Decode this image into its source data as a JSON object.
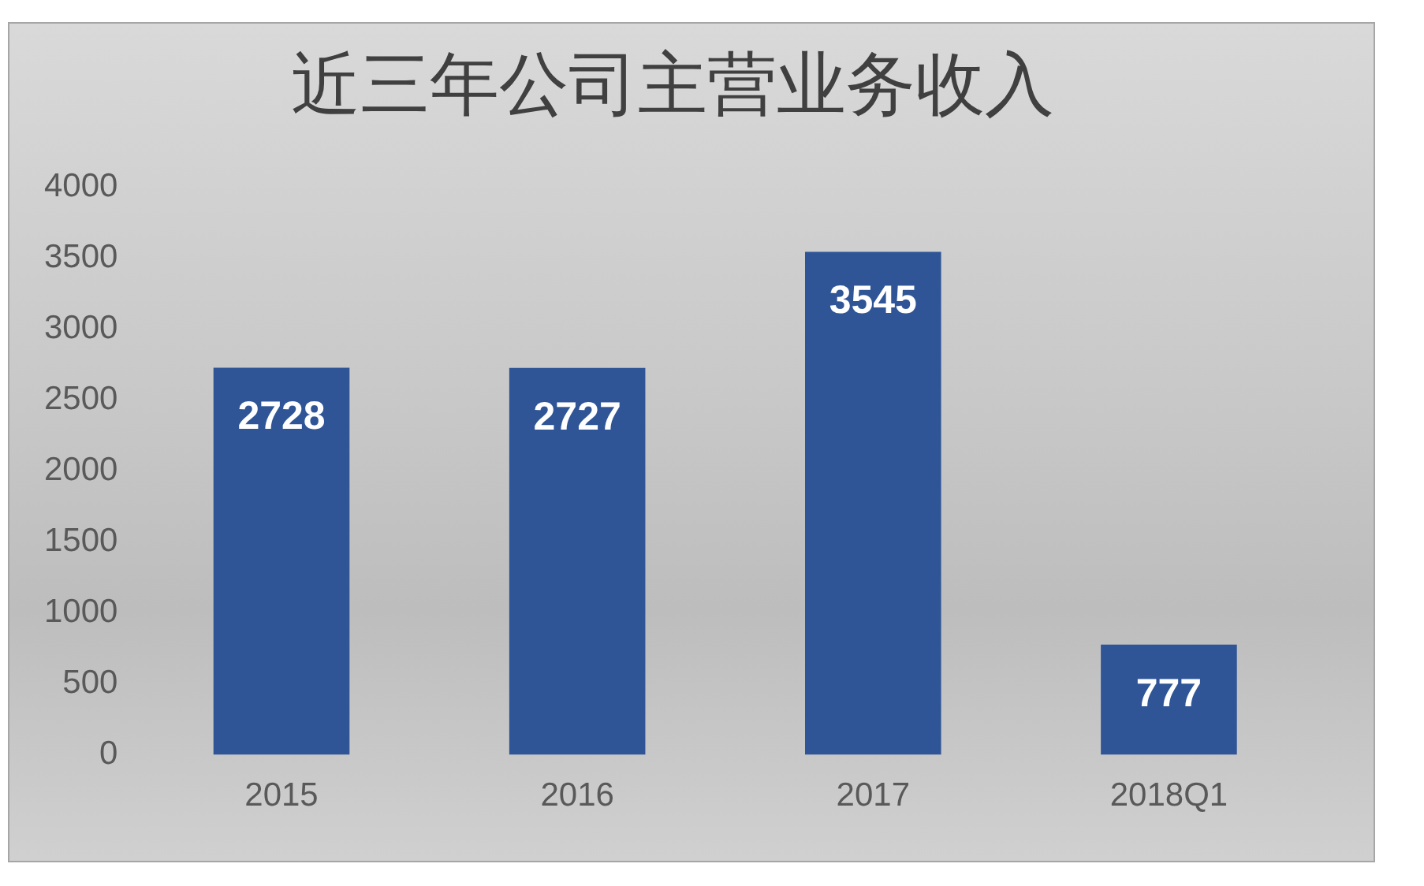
{
  "chart_data": {
    "type": "bar",
    "title": "近三年公司主营业务收入",
    "categories": [
      "2015",
      "2016",
      "2017",
      "2018Q1"
    ],
    "values": [
      2728,
      2727,
      3545,
      777
    ],
    "color": "#2f5597",
    "ylim": [
      0,
      4000
    ],
    "yticks": [
      0,
      500,
      1000,
      1500,
      2000,
      2500,
      3000,
      3500,
      4000
    ],
    "grid": false,
    "legend": false,
    "data_labels": true
  }
}
